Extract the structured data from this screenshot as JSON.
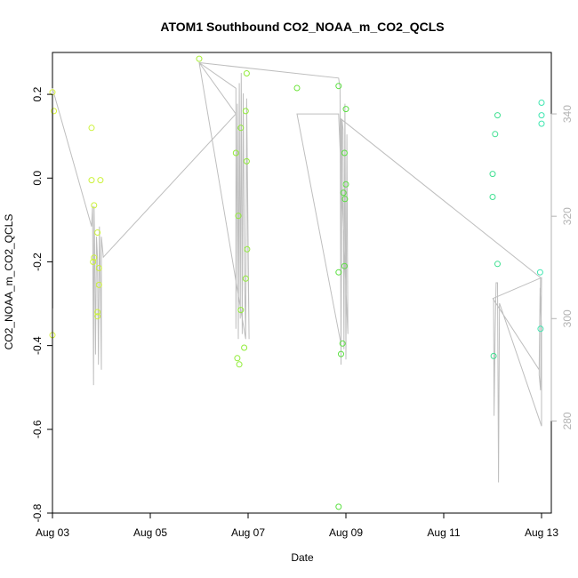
{
  "chart_data": {
    "type": "scatter",
    "title": "ATOM1 Southbound CO2_NOAA_m_CO2_QCLS",
    "xlabel": "Date",
    "ylabel": "CO2_NOAA_m_CO2_QCLS",
    "xlim": [
      3.0,
      13.2
    ],
    "ylim": [
      -0.8,
      0.3
    ],
    "y2lim": [
      262,
      352
    ],
    "x_ticks": [
      {
        "value": 3,
        "label": "Aug 03"
      },
      {
        "value": 5,
        "label": "Aug 05"
      },
      {
        "value": 7,
        "label": "Aug 07"
      },
      {
        "value": 9,
        "label": "Aug 09"
      },
      {
        "value": 11,
        "label": "Aug 11"
      },
      {
        "value": 13,
        "label": "Aug 13"
      }
    ],
    "y_ticks": [
      {
        "value": -0.8,
        "label": "-0.8"
      },
      {
        "value": -0.6,
        "label": "-0.6"
      },
      {
        "value": -0.4,
        "label": "-0.4"
      },
      {
        "value": -0.2,
        "label": "-0.2"
      },
      {
        "value": 0.0,
        "label": "0.0"
      },
      {
        "value": 0.2,
        "label": "0.2"
      }
    ],
    "y2_ticks": [
      {
        "value": 280,
        "label": "280"
      },
      {
        "value": 300,
        "label": "300"
      },
      {
        "value": 320,
        "label": "320"
      },
      {
        "value": 340,
        "label": "340"
      }
    ],
    "points": [
      {
        "x": 3.0,
        "y": 0.205,
        "color": "#d9f53c"
      },
      {
        "x": 3.03,
        "y": 0.16,
        "color": "#d9f53c"
      },
      {
        "x": 3.0,
        "y": -0.375,
        "color": "#d9f53c"
      },
      {
        "x": 3.8,
        "y": 0.12,
        "color": "#ccf23a"
      },
      {
        "x": 3.8,
        "y": -0.005,
        "color": "#ccf23a"
      },
      {
        "x": 3.85,
        "y": -0.065,
        "color": "#ccf23a"
      },
      {
        "x": 3.98,
        "y": -0.005,
        "color": "#ccf23a"
      },
      {
        "x": 3.92,
        "y": -0.13,
        "color": "#ccf23a"
      },
      {
        "x": 3.85,
        "y": -0.19,
        "color": "#ccf23a"
      },
      {
        "x": 3.83,
        "y": -0.2,
        "color": "#ccf23a"
      },
      {
        "x": 3.95,
        "y": -0.215,
        "color": "#ccf23a"
      },
      {
        "x": 3.95,
        "y": -0.255,
        "color": "#ccf23a"
      },
      {
        "x": 3.92,
        "y": -0.32,
        "color": "#ccf23a"
      },
      {
        "x": 3.92,
        "y": -0.33,
        "color": "#ccf23a"
      },
      {
        "x": 6.0,
        "y": 0.285,
        "color": "#a9ef38"
      },
      {
        "x": 6.97,
        "y": 0.25,
        "color": "#91ec38"
      },
      {
        "x": 6.95,
        "y": 0.16,
        "color": "#91ec38"
      },
      {
        "x": 6.85,
        "y": 0.12,
        "color": "#91ec38"
      },
      {
        "x": 6.75,
        "y": 0.06,
        "color": "#91ec38"
      },
      {
        "x": 6.97,
        "y": 0.04,
        "color": "#91ec38"
      },
      {
        "x": 6.8,
        "y": -0.09,
        "color": "#91ec38"
      },
      {
        "x": 6.98,
        "y": -0.17,
        "color": "#91ec38"
      },
      {
        "x": 6.95,
        "y": -0.24,
        "color": "#91ec38"
      },
      {
        "x": 6.85,
        "y": -0.315,
        "color": "#91ec38"
      },
      {
        "x": 6.92,
        "y": -0.405,
        "color": "#91ec38"
      },
      {
        "x": 6.78,
        "y": -0.43,
        "color": "#91ec38"
      },
      {
        "x": 6.82,
        "y": -0.445,
        "color": "#91ec38"
      },
      {
        "x": 8.0,
        "y": 0.215,
        "color": "#6ee43c"
      },
      {
        "x": 8.85,
        "y": 0.22,
        "color": "#5ae040"
      },
      {
        "x": 9.0,
        "y": 0.165,
        "color": "#5ae040"
      },
      {
        "x": 8.97,
        "y": 0.06,
        "color": "#5ae040"
      },
      {
        "x": 9.0,
        "y": -0.015,
        "color": "#5ae040"
      },
      {
        "x": 8.95,
        "y": -0.035,
        "color": "#5ae040"
      },
      {
        "x": 8.98,
        "y": -0.05,
        "color": "#5ae040"
      },
      {
        "x": 8.97,
        "y": -0.21,
        "color": "#5ae040"
      },
      {
        "x": 8.85,
        "y": -0.225,
        "color": "#5ae040"
      },
      {
        "x": 8.93,
        "y": -0.395,
        "color": "#5ae040"
      },
      {
        "x": 8.9,
        "y": -0.42,
        "color": "#5ae040"
      },
      {
        "x": 8.85,
        "y": -0.785,
        "color": "#5ae040"
      },
      {
        "x": 12.0,
        "y": 0.01,
        "color": "#3fe091"
      },
      {
        "x": 12.0,
        "y": -0.045,
        "color": "#3fe091"
      },
      {
        "x": 12.05,
        "y": 0.105,
        "color": "#3fe091"
      },
      {
        "x": 12.1,
        "y": 0.15,
        "color": "#3fe091"
      },
      {
        "x": 12.1,
        "y": -0.205,
        "color": "#3fe091"
      },
      {
        "x": 12.02,
        "y": -0.425,
        "color": "#3fe091"
      },
      {
        "x": 13.0,
        "y": 0.18,
        "color": "#3fe6b0"
      },
      {
        "x": 13.0,
        "y": 0.15,
        "color": "#3fe6b0"
      },
      {
        "x": 13.0,
        "y": 0.13,
        "color": "#3fe6b0"
      },
      {
        "x": 12.97,
        "y": -0.225,
        "color": "#3fe6b0"
      },
      {
        "x": 12.98,
        "y": -0.36,
        "color": "#3fe6b0"
      }
    ],
    "trace_y2": [
      [
        3.0,
        345
      ],
      [
        3.0,
        340
      ],
      [
        3.01,
        340
      ],
      [
        3.01,
        302
      ],
      [
        3.0,
        342
      ],
      [
        3.0,
        345
      ],
      [
        3.8,
        318
      ],
      [
        3.82,
        322
      ],
      [
        3.84,
        287
      ],
      [
        3.85,
        322
      ],
      [
        3.86,
        316
      ],
      [
        3.88,
        293
      ],
      [
        3.9,
        316
      ],
      [
        3.92,
        312
      ],
      [
        3.94,
        291
      ],
      [
        3.96,
        318
      ],
      [
        3.98,
        307
      ],
      [
        4.0,
        290
      ],
      [
        4.0,
        316
      ],
      [
        4.02,
        314
      ],
      [
        4.04,
        312
      ],
      [
        6.75,
        340
      ],
      [
        6.0,
        350
      ],
      [
        6.75,
        345
      ],
      [
        6.75,
        298
      ],
      [
        6.78,
        342
      ],
      [
        6.8,
        296
      ],
      [
        6.82,
        346
      ],
      [
        6.84,
        300
      ],
      [
        6.86,
        348
      ],
      [
        6.88,
        297
      ],
      [
        6.9,
        344
      ],
      [
        6.93,
        306
      ],
      [
        6.95,
        297
      ],
      [
        6.97,
        341
      ],
      [
        7.0,
        310
      ],
      [
        7.02,
        296
      ],
      [
        6.97,
        343
      ],
      [
        6.95,
        296
      ],
      [
        6.0,
        350
      ],
      [
        8.85,
        347
      ],
      [
        8.88,
        345
      ],
      [
        8.9,
        291
      ],
      [
        8.92,
        339
      ],
      [
        8.94,
        337
      ],
      [
        8.96,
        294
      ],
      [
        8.98,
        342
      ],
      [
        9.0,
        292
      ],
      [
        9.02,
        336
      ],
      [
        9.04,
        297
      ],
      [
        8.85,
        340
      ],
      [
        8.0,
        340
      ],
      [
        8.9,
        295
      ],
      [
        8.9,
        339
      ],
      [
        12.98,
        308
      ],
      [
        12.95,
        289
      ],
      [
        12.98,
        286
      ],
      [
        13.0,
        308
      ],
      [
        12.02,
        304
      ],
      [
        12.03,
        281
      ],
      [
        12.05,
        297
      ],
      [
        12.07,
        307
      ],
      [
        12.1,
        307
      ],
      [
        12.12,
        268
      ],
      [
        12.14,
        303
      ],
      [
        13.0,
        279
      ],
      [
        13.0,
        298
      ],
      [
        12.97,
        306
      ],
      [
        12.95,
        290
      ],
      [
        12.0,
        304
      ]
    ]
  }
}
